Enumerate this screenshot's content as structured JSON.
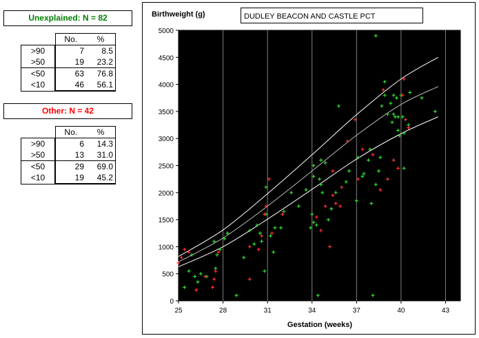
{
  "panels": {
    "unexplained": {
      "title": "Unexplained: N = 82",
      "title_color": "#008000",
      "header": [
        "No.",
        "%"
      ],
      "rows": [
        {
          "label": ">90",
          "no": "7",
          "pct": "8.5"
        },
        {
          "label": ">50",
          "no": "19",
          "pct": "23.2"
        },
        {
          "label": "<50",
          "no": "63",
          "pct": "76.8"
        },
        {
          "label": "<10",
          "no": "46",
          "pct": "56.1"
        }
      ]
    },
    "other": {
      "title": "Other: N = 42",
      "title_color": "#ff0000",
      "header": [
        "No.",
        "%"
      ],
      "rows": [
        {
          "label": ">90",
          "no": "6",
          "pct": "14.3"
        },
        {
          "label": ">50",
          "no": "13",
          "pct": "31.0"
        },
        {
          "label": "<50",
          "no": "29",
          "pct": "69.0"
        },
        {
          "label": "<10",
          "no": "19",
          "pct": "45.2"
        }
      ]
    }
  },
  "chart_data": {
    "type": "scatter",
    "title": "DUDLEY BEACON AND CASTLE PCT",
    "ylabel": "Birthweight (g)",
    "xlabel": "Gestation (weeks)",
    "xlim": [
      25,
      44
    ],
    "ylim": [
      0,
      5000
    ],
    "xticks": [
      25,
      28,
      31,
      34,
      37,
      40,
      43
    ],
    "yticks": [
      0,
      500,
      1000,
      1500,
      2000,
      2500,
      3000,
      3500,
      4000,
      4500,
      5000
    ],
    "vertical_gridlines": [
      28,
      31,
      34,
      37,
      40,
      43
    ],
    "plot_background": "#000000",
    "colors": {
      "unexplained": "#33dd33",
      "other": "#ff3333",
      "centiles": "#ffffff"
    },
    "centile_curves": [
      {
        "name": "90th",
        "x": [
          25,
          28,
          31,
          34,
          37,
          40,
          42.5
        ],
        "y": [
          820,
          1310,
          1980,
          2700,
          3440,
          4100,
          4500
        ]
      },
      {
        "name": "50th",
        "x": [
          25,
          28,
          31,
          34,
          37,
          40,
          42.5
        ],
        "y": [
          720,
          1160,
          1750,
          2400,
          3060,
          3630,
          3960
        ]
      },
      {
        "name": "10th",
        "x": [
          25,
          28,
          31,
          34,
          37,
          40,
          42.5
        ],
        "y": [
          630,
          1000,
          1510,
          2060,
          2620,
          3090,
          3400
        ]
      }
    ],
    "series": [
      {
        "name": "Unexplained",
        "points": [
          [
            25.4,
            250
          ],
          [
            25.7,
            550
          ],
          [
            25.9,
            850
          ],
          [
            26.1,
            450
          ],
          [
            26.5,
            500
          ],
          [
            26.9,
            450
          ],
          [
            27.4,
            1100
          ],
          [
            27.6,
            850
          ],
          [
            27.8,
            950
          ],
          [
            28.1,
            1150
          ],
          [
            28.3,
            1250
          ],
          [
            28.9,
            100
          ],
          [
            29.8,
            1300
          ],
          [
            30.1,
            1050
          ],
          [
            30.3,
            1400
          ],
          [
            30.6,
            1100
          ],
          [
            30.8,
            550
          ],
          [
            30.9,
            1600
          ],
          [
            30.9,
            2100
          ],
          [
            31.2,
            1200
          ],
          [
            31.5,
            1350
          ],
          [
            31.9,
            1350
          ],
          [
            32.1,
            1650
          ],
          [
            32.6,
            2000
          ],
          [
            33.1,
            1750
          ],
          [
            33.6,
            2050
          ],
          [
            33.9,
            1350
          ],
          [
            34.0,
            1600
          ],
          [
            34.1,
            1450
          ],
          [
            34.1,
            2300
          ],
          [
            34.1,
            2500
          ],
          [
            34.3,
            1400
          ],
          [
            34.5,
            2250
          ],
          [
            34.6,
            2150
          ],
          [
            34.7,
            2000
          ],
          [
            34.6,
            2600
          ],
          [
            34.9,
            2550
          ],
          [
            35.3,
            1700
          ],
          [
            35.6,
            2000
          ],
          [
            35.8,
            3600
          ],
          [
            36.5,
            2400
          ],
          [
            36.3,
            2200
          ],
          [
            37.1,
            2650
          ],
          [
            37.0,
            1850
          ],
          [
            37.5,
            2350
          ],
          [
            37.4,
            2300
          ],
          [
            37.8,
            2600
          ],
          [
            38.0,
            1800
          ],
          [
            38.1,
            100
          ],
          [
            38.3,
            2150
          ],
          [
            38.3,
            4900
          ],
          [
            38.6,
            2650
          ],
          [
            38.7,
            3600
          ],
          [
            38.9,
            3800
          ],
          [
            38.9,
            4050
          ],
          [
            39.1,
            3450
          ],
          [
            39.3,
            3650
          ],
          [
            39.4,
            3300
          ],
          [
            39.5,
            3450
          ],
          [
            39.5,
            3800
          ],
          [
            39.6,
            3400
          ],
          [
            39.7,
            3750
          ],
          [
            39.8,
            3150
          ],
          [
            39.8,
            3400
          ],
          [
            39.9,
            3050
          ],
          [
            40.0,
            3800
          ],
          [
            40.1,
            3400
          ],
          [
            40.2,
            2450
          ],
          [
            40.2,
            3100
          ],
          [
            40.5,
            3250
          ],
          [
            40.6,
            3850
          ],
          [
            41.4,
            3750
          ],
          [
            42.3,
            3500
          ],
          [
            38.5,
            2400
          ],
          [
            37.9,
            2800
          ],
          [
            26.3,
            350
          ],
          [
            27.5,
            600
          ],
          [
            29.4,
            800
          ],
          [
            30.5,
            1250
          ],
          [
            31.4,
            900
          ],
          [
            34.4,
            100
          ],
          [
            35.1,
            1500
          ]
        ]
      },
      {
        "name": "Other",
        "points": [
          [
            25.0,
            700
          ],
          [
            25.2,
            800
          ],
          [
            25.4,
            950
          ],
          [
            25.7,
            900
          ],
          [
            26.2,
            200
          ],
          [
            26.8,
            450
          ],
          [
            27.3,
            250
          ],
          [
            27.4,
            400
          ],
          [
            27.5,
            550
          ],
          [
            27.7,
            900
          ],
          [
            29.8,
            400
          ],
          [
            29.8,
            1000
          ],
          [
            30.4,
            950
          ],
          [
            30.6,
            1200
          ],
          [
            30.8,
            1600
          ],
          [
            30.9,
            1750
          ],
          [
            31.1,
            2250
          ],
          [
            31.3,
            1250
          ],
          [
            32.0,
            1600
          ],
          [
            34.3,
            1550
          ],
          [
            34.6,
            1300
          ],
          [
            34.9,
            1750
          ],
          [
            35.2,
            1000
          ],
          [
            35.4,
            1950
          ],
          [
            35.4,
            2400
          ],
          [
            35.6,
            1800
          ],
          [
            35.9,
            1750
          ],
          [
            36.0,
            2100
          ],
          [
            36.4,
            2950
          ],
          [
            36.9,
            3350
          ],
          [
            37.1,
            2250
          ],
          [
            37.4,
            2800
          ],
          [
            38.6,
            2050
          ],
          [
            38.8,
            3900
          ],
          [
            39.1,
            2250
          ],
          [
            39.5,
            2600
          ],
          [
            39.8,
            2450
          ],
          [
            40.1,
            3800
          ],
          [
            40.2,
            4100
          ],
          [
            40.3,
            3350
          ],
          [
            40.5,
            3200
          ],
          [
            38.1,
            2700
          ]
        ]
      }
    ]
  }
}
